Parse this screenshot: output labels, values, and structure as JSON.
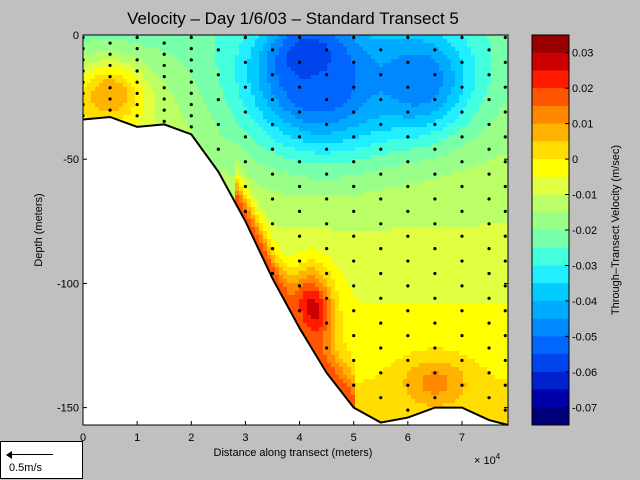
{
  "chart_data": {
    "type": "contour",
    "title": "Velocity – Day 1/6/03 – Standard Transect 5",
    "xlabel": "Distance along transect (meters)",
    "ylabel": "Depth (meters)",
    "x_multiplier": "× 10",
    "x_multiplier_exp": "4",
    "xlim": [
      0,
      78500
    ],
    "ylim": [
      -157,
      0
    ],
    "x_ticks": [
      0,
      1,
      2,
      3,
      4,
      5,
      6,
      7
    ],
    "y_ticks": [
      0,
      -50,
      -100,
      -150
    ],
    "colorbar": {
      "label": "Through–Transect Velocity (m/sec)",
      "ticks": [
        "0.03",
        "0.02",
        "0.01",
        "0",
        "-0.01",
        "-0.02",
        "-0.03",
        "-0.04",
        "-0.05",
        "-0.06",
        "-0.07"
      ],
      "levels": [
        0.035,
        0.03,
        0.025,
        0.02,
        0.015,
        0.01,
        0.005,
        0,
        -0.005,
        -0.01,
        -0.015,
        -0.02,
        -0.025,
        -0.03,
        -0.035,
        -0.04,
        -0.045,
        -0.05,
        -0.055,
        -0.06,
        -0.065,
        -0.07,
        -0.075
      ],
      "colors": [
        "#990000",
        "#cc0000",
        "#ff1a00",
        "#ff5500",
        "#ff8800",
        "#ffb300",
        "#ffdd00",
        "#ffff00",
        "#e0ff40",
        "#bbff66",
        "#99ff88",
        "#77ffaa",
        "#44ffdd",
        "#22eeff",
        "#00ccff",
        "#00aaff",
        "#0088ff",
        "#0066ff",
        "#0044ee",
        "#0022cc",
        "#0000aa",
        "#00007a"
      ]
    },
    "bottom_profile": [
      [
        0,
        -34
      ],
      [
        5000,
        -33
      ],
      [
        10000,
        -37
      ],
      [
        15000,
        -36
      ],
      [
        20000,
        -40
      ],
      [
        25000,
        -55
      ],
      [
        30000,
        -75
      ],
      [
        35000,
        -98
      ],
      [
        40000,
        -118
      ],
      [
        45000,
        -136
      ],
      [
        50000,
        -150
      ],
      [
        55000,
        -156
      ],
      [
        60000,
        -154
      ],
      [
        65000,
        -150
      ],
      [
        70000,
        -150
      ],
      [
        75000,
        -155
      ],
      [
        78500,
        -157
      ]
    ],
    "features": [
      {
        "x": 42000,
        "y": -10,
        "value": -0.07,
        "sx": 7000,
        "sy": 14
      },
      {
        "x": 44000,
        "y": -20,
        "value": -0.055,
        "sx": 14000,
        "sy": 28
      },
      {
        "x": 62000,
        "y": -18,
        "value": -0.05,
        "sx": 10000,
        "sy": 22
      },
      {
        "x": 42000,
        "y": -112,
        "value": 0.03,
        "sx": 4000,
        "sy": 17
      },
      {
        "x": 65000,
        "y": -140,
        "value": 0.012,
        "sx": 6000,
        "sy": 10
      },
      {
        "x": 5000,
        "y": -24,
        "value": 0.01,
        "sx": 6000,
        "sy": 12
      }
    ],
    "station_x": [
      0,
      5000,
      10000,
      15000,
      20000,
      25000,
      30000,
      35000,
      40000,
      45000,
      50000,
      55000,
      60000,
      65000,
      70000,
      75000,
      78000
    ],
    "scale_label": "0.5m/s"
  }
}
